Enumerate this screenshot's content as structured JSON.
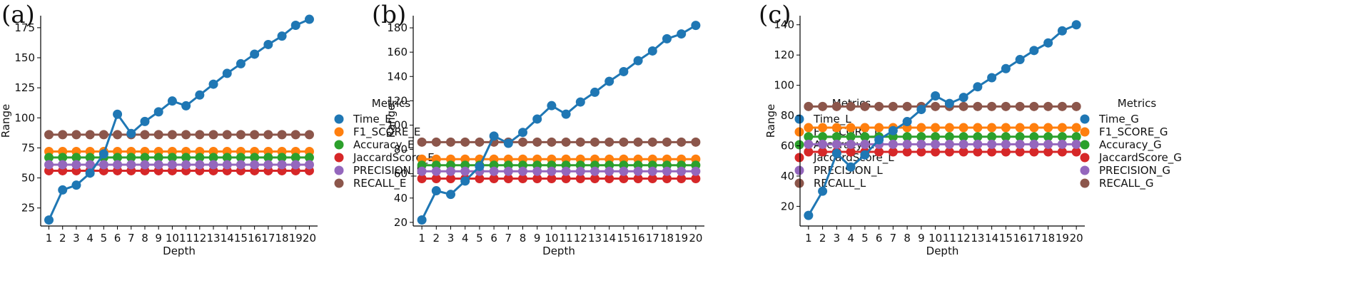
{
  "chart_data": [
    {
      "panel_label": "(a)",
      "type": "line",
      "xlabel": "Depth",
      "ylabel": "Range",
      "x": [
        1,
        2,
        3,
        4,
        5,
        6,
        7,
        8,
        9,
        10,
        11,
        12,
        13,
        14,
        15,
        16,
        17,
        18,
        19,
        20
      ],
      "ylim": [
        10,
        185
      ],
      "yticks": [
        25,
        50,
        75,
        100,
        125,
        150,
        175
      ],
      "legend_title": "Metrics",
      "legend_position": "right",
      "series": [
        {
          "name": "Time_E",
          "color": "#1f77b4",
          "values": [
            15,
            40,
            44,
            54,
            70,
            103,
            87,
            97,
            105,
            114,
            110,
            119,
            128,
            137,
            145,
            153,
            161,
            168,
            177,
            182
          ]
        },
        {
          "name": "F1_SCORE_E",
          "color": "#ff7f0e",
          "values": [
            72,
            72,
            72,
            72,
            72,
            72,
            72,
            72,
            72,
            72,
            72,
            72,
            72,
            72,
            72,
            72,
            72,
            72,
            72,
            72
          ]
        },
        {
          "name": "Accuracy_E",
          "color": "#2ca02c",
          "values": [
            67,
            67,
            67,
            67,
            67,
            67,
            67,
            67,
            67,
            67,
            67,
            67,
            67,
            67,
            67,
            67,
            67,
            67,
            67,
            67
          ]
        },
        {
          "name": "JaccardScore_E",
          "color": "#d62728",
          "values": [
            56,
            56,
            56,
            56,
            56,
            56,
            56,
            56,
            56,
            56,
            56,
            56,
            56,
            56,
            56,
            56,
            56,
            56,
            56,
            56
          ]
        },
        {
          "name": "PRECISION_E",
          "color": "#9467bd",
          "values": [
            61,
            61,
            61,
            61,
            61,
            61,
            61,
            61,
            61,
            61,
            61,
            61,
            61,
            61,
            61,
            61,
            61,
            61,
            61,
            61
          ]
        },
        {
          "name": "RECALL_E",
          "color": "#8c564b",
          "values": [
            86,
            86,
            86,
            86,
            86,
            86,
            86,
            86,
            86,
            86,
            86,
            86,
            86,
            86,
            86,
            86,
            86,
            86,
            86,
            86
          ]
        }
      ]
    },
    {
      "panel_label": "(b)",
      "type": "line",
      "xlabel": "Depth",
      "ylabel": "Range",
      "x": [
        1,
        2,
        3,
        4,
        5,
        6,
        7,
        8,
        9,
        10,
        11,
        12,
        13,
        14,
        15,
        16,
        17,
        18,
        19,
        20
      ],
      "ylim": [
        17,
        190
      ],
      "yticks": [
        20,
        40,
        60,
        80,
        100,
        120,
        140,
        160,
        180
      ],
      "legend_title": "Metrics",
      "legend_position": "right",
      "series": [
        {
          "name": "Time_L",
          "color": "#1f77b4",
          "values": [
            22,
            46,
            43,
            54,
            66,
            91,
            85,
            94,
            105,
            116,
            109,
            119,
            127,
            136,
            144,
            153,
            161,
            171,
            175,
            182
          ]
        },
        {
          "name": "F1_SCORE_L",
          "color": "#ff7f0e",
          "values": [
            72,
            72,
            72,
            72,
            72,
            72,
            72,
            72,
            72,
            72,
            72,
            72,
            72,
            72,
            72,
            72,
            72,
            72,
            72,
            72
          ]
        },
        {
          "name": "Accuracy_L",
          "color": "#2ca02c",
          "values": [
            67,
            67,
            67,
            67,
            67,
            67,
            67,
            67,
            67,
            67,
            67,
            67,
            67,
            67,
            67,
            67,
            67,
            67,
            67,
            67
          ]
        },
        {
          "name": "JaccardScore_L",
          "color": "#d62728",
          "values": [
            56,
            56,
            56,
            56,
            56,
            56,
            56,
            56,
            56,
            56,
            56,
            56,
            56,
            56,
            56,
            56,
            56,
            56,
            56,
            56
          ]
        },
        {
          "name": "PRECISION_L",
          "color": "#9467bd",
          "values": [
            62,
            62,
            62,
            62,
            62,
            62,
            62,
            62,
            62,
            62,
            62,
            62,
            62,
            62,
            62,
            62,
            62,
            62,
            62,
            62
          ]
        },
        {
          "name": "RECALL_L",
          "color": "#8c564b",
          "values": [
            86,
            86,
            86,
            86,
            86,
            86,
            86,
            86,
            86,
            86,
            86,
            86,
            86,
            86,
            86,
            86,
            86,
            86,
            86,
            86
          ]
        }
      ]
    },
    {
      "panel_label": "(c)",
      "type": "line",
      "xlabel": "Depth",
      "ylabel": "Range",
      "x": [
        1,
        2,
        3,
        4,
        5,
        6,
        7,
        8,
        9,
        10,
        11,
        12,
        13,
        14,
        15,
        16,
        17,
        18,
        19,
        20
      ],
      "ylim": [
        7,
        146
      ],
      "yticks": [
        20,
        40,
        60,
        80,
        100,
        120,
        140
      ],
      "legend_title": "Metrics",
      "legend_position": "right",
      "series": [
        {
          "name": "Time_G",
          "color": "#1f77b4",
          "values": [
            14,
            30,
            55,
            46,
            54,
            64,
            70,
            76,
            84,
            93,
            88,
            92,
            99,
            105,
            111,
            117,
            123,
            128,
            136,
            140
          ]
        },
        {
          "name": "F1_SCORE_G",
          "color": "#ff7f0e",
          "values": [
            72,
            72,
            72,
            72,
            72,
            72,
            72,
            72,
            72,
            72,
            72,
            72,
            72,
            72,
            72,
            72,
            72,
            72,
            72,
            72
          ]
        },
        {
          "name": "Accuracy_G",
          "color": "#2ca02c",
          "values": [
            66,
            66,
            66,
            66,
            66,
            66,
            66,
            66,
            66,
            66,
            66,
            66,
            66,
            66,
            66,
            66,
            66,
            66,
            66,
            66
          ]
        },
        {
          "name": "JaccardScore_G",
          "color": "#d62728",
          "values": [
            56,
            56,
            56,
            56,
            56,
            56,
            56,
            56,
            56,
            56,
            56,
            56,
            56,
            56,
            56,
            56,
            56,
            56,
            56,
            56
          ]
        },
        {
          "name": "PRECISION_G",
          "color": "#9467bd",
          "values": [
            61,
            61,
            61,
            61,
            61,
            61,
            61,
            61,
            61,
            61,
            61,
            61,
            61,
            61,
            61,
            61,
            61,
            61,
            61,
            61
          ]
        },
        {
          "name": "RECALL_G",
          "color": "#8c564b",
          "values": [
            86,
            86,
            86,
            86,
            86,
            86,
            86,
            86,
            86,
            86,
            86,
            86,
            86,
            86,
            86,
            86,
            86,
            86,
            86,
            86
          ]
        }
      ]
    }
  ]
}
